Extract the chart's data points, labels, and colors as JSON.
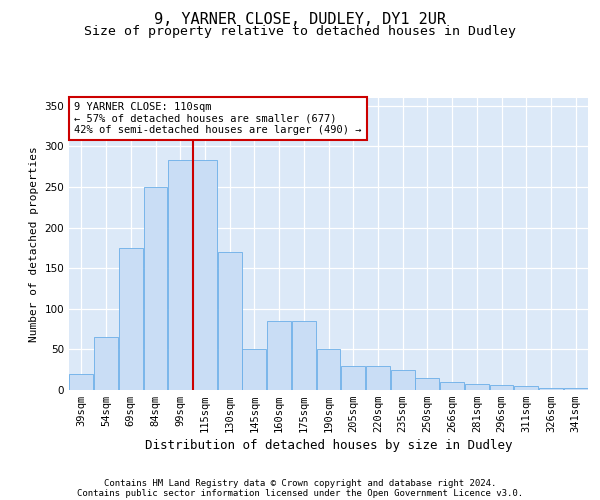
{
  "title1": "9, YARNER CLOSE, DUDLEY, DY1 2UR",
  "title2": "Size of property relative to detached houses in Dudley",
  "xlabel": "Distribution of detached houses by size in Dudley",
  "ylabel": "Number of detached properties",
  "footer1": "Contains HM Land Registry data © Crown copyright and database right 2024.",
  "footer2": "Contains public sector information licensed under the Open Government Licence v3.0.",
  "categories": [
    "39sqm",
    "54sqm",
    "69sqm",
    "84sqm",
    "99sqm",
    "115sqm",
    "130sqm",
    "145sqm",
    "160sqm",
    "175sqm",
    "190sqm",
    "205sqm",
    "220sqm",
    "235sqm",
    "250sqm",
    "266sqm",
    "281sqm",
    "296sqm",
    "311sqm",
    "326sqm",
    "341sqm"
  ],
  "values": [
    20,
    65,
    175,
    250,
    283,
    283,
    170,
    50,
    85,
    85,
    50,
    30,
    30,
    25,
    15,
    10,
    8,
    6,
    5,
    3,
    3
  ],
  "bar_color": "#c9ddf5",
  "bar_edge_color": "#6aaee8",
  "red_line_x": 5.0,
  "annotation_text": "9 YARNER CLOSE: 110sqm\n← 57% of detached houses are smaller (677)\n42% of semi-detached houses are larger (490) →",
  "annotation_box_color": "#ffffff",
  "annotation_box_edge_color": "#cc0000",
  "ylim": [
    0,
    360
  ],
  "yticks": [
    0,
    50,
    100,
    150,
    200,
    250,
    300,
    350
  ],
  "background_color": "#dce9f8",
  "grid_color": "#ffffff",
  "title1_fontsize": 11,
  "title2_fontsize": 9.5,
  "xlabel_fontsize": 9,
  "ylabel_fontsize": 8,
  "tick_fontsize": 7.5,
  "footer_fontsize": 6.5
}
